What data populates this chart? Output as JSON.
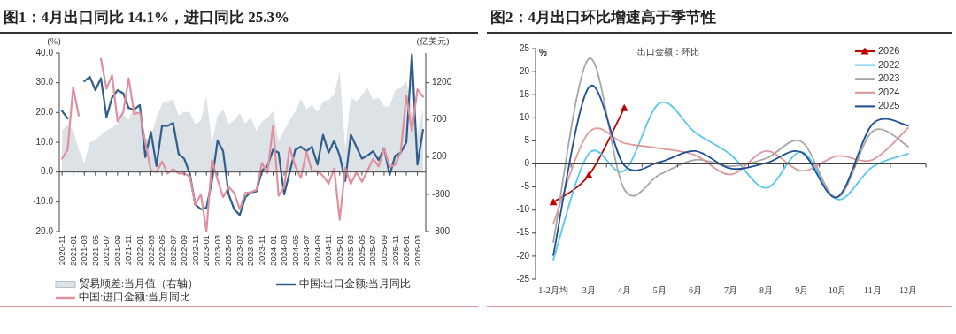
{
  "chart_data": [
    {
      "type": "line",
      "title": "图1：4月出口同比 14.1%，进口同比 25.3%",
      "ylabel": "(%)",
      "y2label": "(亿美元)",
      "legend": "bottom",
      "categories": [
        "2020-11",
        null,
        "2021-01",
        null,
        "2021-03",
        null,
        "2021-05",
        null,
        "2021-07",
        null,
        "2021-09",
        null,
        "2021-11",
        null,
        "2022-01",
        null,
        "2022-03",
        null,
        "2022-05",
        null,
        "2022-07",
        null,
        "2022-09",
        null,
        "2022-11",
        null,
        "2023-01",
        null,
        "2023-03",
        null,
        "2023-05",
        null,
        "2023-07",
        null,
        "2023-09",
        null,
        "2023-11",
        null,
        "2024-01",
        null,
        "2024-03",
        null,
        "2024-05",
        null,
        "2024-07",
        null,
        "2024-09",
        null,
        "2024-11",
        null,
        "2025-01",
        null,
        "2025-03",
        null,
        "2025-05",
        null,
        "2025-07",
        null,
        "2025-09",
        null,
        "2025-11",
        null,
        "2026-01",
        null,
        "2026-03",
        null
      ],
      "series": [
        {
          "name": "贸易顺差:当月值（右轴）",
          "type": "area",
          "axis": "y2",
          "color": "#dde2e6",
          "values": [
            560,
            640,
            560,
            300,
            120,
            400,
            430,
            500,
            560,
            600,
            650,
            780,
            700,
            910,
            720,
            440,
            480,
            730,
            920,
            950,
            980,
            760,
            810,
            800,
            640,
            690,
            1020,
            380,
            760,
            840,
            640,
            700,
            790,
            650,
            740,
            550,
            680,
            730,
            820,
            410,
            560,
            700,
            810,
            980,
            850,
            900,
            810,
            950,
            970,
            1040,
            1360,
            310,
            1010,
            950,
            1030,
            1130,
            970,
            1000,
            880,
            880,
            1100,
            1130,
            1220,
            860,
            520,
            840
          ]
        },
        {
          "name": "中国:出口金额:当月同比",
          "color": "#2f5d8c",
          "values": [
            20.5,
            18,
            null,
            null,
            30.5,
            32,
            27.5,
            31.5,
            18.5,
            25,
            27.5,
            26.5,
            21.5,
            21,
            22.5,
            5,
            13.5,
            2,
            15.5,
            15.5,
            16.5,
            6,
            4.5,
            -0.5,
            -11,
            -12.5,
            -12,
            -3,
            10.5,
            7,
            -7.5,
            -12.5,
            -14.5,
            -8.5,
            -6.8,
            -6.5,
            0.5,
            2,
            7.5,
            6.5,
            -7.5,
            0,
            7.5,
            8.5,
            7,
            8.5,
            2.5,
            12.5,
            6.5,
            10.5,
            5.5,
            -3,
            12.5,
            8.5,
            4.5,
            5.5,
            7,
            4,
            8,
            -1,
            5.5,
            6.5,
            10,
            39.5,
            2.5,
            14.1
          ]
        },
        {
          "name": "中国:进口金额:当月同比",
          "color": "#e0909d",
          "values": [
            4.5,
            7.5,
            28.5,
            19,
            null,
            null,
            null,
            38,
            28,
            32.5,
            17,
            20,
            31.5,
            19.5,
            20,
            10,
            0.5,
            0,
            3.5,
            -0.5,
            1,
            -0.5,
            -0.5,
            -1.5,
            -11,
            -7.5,
            -20,
            4,
            -2.5,
            -8.5,
            -5,
            -7,
            -12.5,
            -7,
            -6.8,
            -6,
            3,
            -0.3,
            15.7,
            -8,
            -5,
            8.3,
            1.9,
            -2,
            6.8,
            0.3,
            0.3,
            -1.3,
            -3.9,
            1.1,
            -16,
            1.4,
            -4,
            -0.1,
            -3.3,
            0.4,
            4.4,
            1.9,
            7.8,
            1.7,
            2.4,
            6.8,
            25.8,
            13.8,
            27.8,
            25.3
          ]
        }
      ],
      "ylim": [
        -20,
        40
      ],
      "yticks": [
        {
          "value": -20,
          "label": "-20.0"
        },
        {
          "value": -10,
          "label": "-10.0"
        },
        {
          "value": 0,
          "label": "0.0"
        },
        {
          "value": 10,
          "label": "10.0"
        },
        {
          "value": 20,
          "label": "20.0"
        },
        {
          "value": 30,
          "label": "30.0"
        },
        {
          "value": 40,
          "label": "40.0"
        }
      ],
      "y2lim": [
        -800,
        1600
      ],
      "y2ticks": [
        -800,
        -300,
        200,
        700,
        1200
      ]
    },
    {
      "type": "line",
      "title": "图2：4月出口环比增速高于季节性",
      "ylabel": "%",
      "legend": "top right",
      "annotations": [
        "出口金额：环比"
      ],
      "categories": [
        "1-2月均",
        "3月",
        "4月",
        "5月",
        "6月",
        "7月",
        "8月",
        "9月",
        "10月",
        "11月",
        "12月"
      ],
      "series": [
        {
          "name": "2026",
          "color": "#c00000",
          "marker": "triangle",
          "values": [
            -8.3,
            -2.5,
            12.1,
            null,
            null,
            null,
            null,
            null,
            null,
            null,
            null
          ]
        },
        {
          "name": "2022",
          "color": "#5bc6f0",
          "values": [
            -20.8,
            2.2,
            -1.5,
            13.2,
            6.8,
            2,
            -5.2,
            2.6,
            -7.7,
            -0.6,
            2.2
          ]
        },
        {
          "name": "2023",
          "color": "#a6a6a6",
          "values": [
            -17,
            22.8,
            -5.5,
            -2.3,
            0.9,
            -0.5,
            1.2,
            4.8,
            -7.3,
            7.1,
            3.8
          ]
        },
        {
          "name": "2024",
          "color": "#dd9a9a",
          "values": [
            -13,
            6.8,
            4.5,
            3.4,
            1.9,
            -2.3,
            2.8,
            -1.5,
            1.7,
            0.9,
            7.8
          ]
        },
        {
          "name": "2025",
          "color": "#1f4f95",
          "values": [
            -19.8,
            16.6,
            -0.3,
            0.4,
            2.8,
            -1,
            0.2,
            2.5,
            -7.2,
            8.7,
            8.3
          ]
        }
      ],
      "ylim": [
        -25,
        25
      ],
      "yticks": [
        -25,
        -20,
        -15,
        -10,
        -5,
        0,
        5,
        10,
        15,
        20,
        25
      ]
    }
  ]
}
